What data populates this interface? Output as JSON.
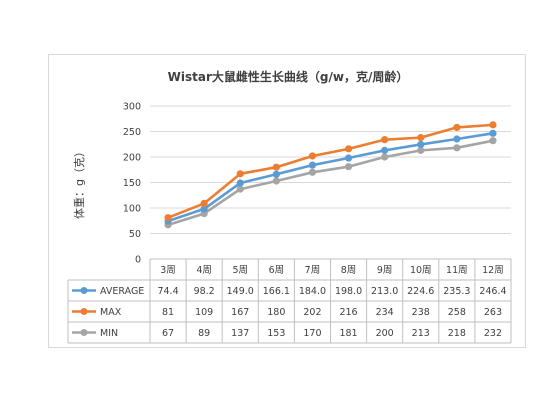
{
  "chart_data": {
    "type": "line",
    "title": "Wistar大鼠雌性生长曲线（g/w，克/周龄）",
    "ylabel": "体重：g（克）",
    "xlabel": "",
    "categories": [
      "3周",
      "4周",
      "5周",
      "6周",
      "7周",
      "8周",
      "9周",
      "10周",
      "11周",
      "12周"
    ],
    "ylim": [
      0,
      300
    ],
    "yticks": [
      0,
      50,
      100,
      150,
      200,
      250,
      300
    ],
    "grid": true,
    "legend": "table-below",
    "series": [
      {
        "name": "AVERAGE",
        "color": "#5b9bd5",
        "values": [
          74.4,
          98.2,
          149.0,
          166.1,
          184.0,
          198.0,
          213.0,
          224.6,
          235.3,
          246.4
        ],
        "labels": [
          "74.4",
          "98.2",
          "149.0",
          "166.1",
          "184.0",
          "198.0",
          "213.0",
          "224.6",
          "235.3",
          "246.4"
        ]
      },
      {
        "name": "MAX",
        "color": "#ed7d31",
        "values": [
          81,
          109,
          167,
          180,
          202,
          216,
          234,
          238,
          258,
          263
        ],
        "labels": [
          "81",
          "109",
          "167",
          "180",
          "202",
          "216",
          "234",
          "238",
          "258",
          "263"
        ]
      },
      {
        "name": "MIN",
        "color": "#a5a5a5",
        "values": [
          67,
          89,
          137,
          153,
          170,
          181,
          200,
          213,
          218,
          232
        ],
        "labels": [
          "67",
          "89",
          "137",
          "153",
          "170",
          "181",
          "200",
          "213",
          "218",
          "232"
        ]
      }
    ]
  }
}
